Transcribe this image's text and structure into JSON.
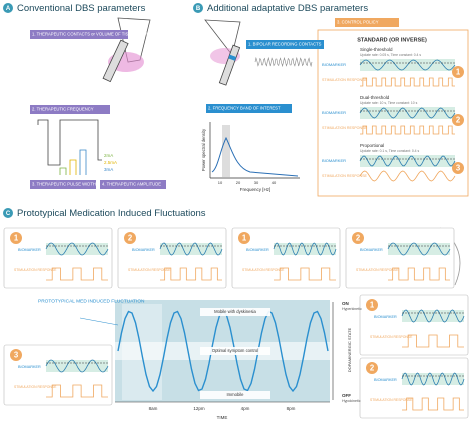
{
  "panel_a": {
    "letter": "A",
    "title": "Conventional DBS parameters",
    "labels": [
      "1. THERAPEUTIC CONTACTS or VOLUME OF TISSUE ACTIVATED",
      "2. THERAPEUTIC FREQUENCY",
      "3. THERAPEUTIC PULSE WIDTH",
      "4. THERAPEUTIC AMPLITUDE"
    ],
    "amplitudes": [
      "2mA",
      "2.5mA",
      "3mA"
    ]
  },
  "panel_b": {
    "letter": "B",
    "title": "Additional adaptative DBS parameters",
    "labels": [
      "1. BIPOLAR RECORDING CONTACTS",
      "2. FREQUENCY BAND OF INTEREST",
      "3. CONTROL POLICY"
    ],
    "psd": {
      "y_label": "Power spectral density",
      "x_label": "Frequency [Hz]",
      "xticks": [
        10,
        20,
        30,
        40
      ]
    },
    "policy": {
      "heading": "STANDARD (OR INVERSE)",
      "modes": [
        {
          "badge": "1",
          "name": "Single-threshold",
          "detail": "Update rate: 0.05 s, Time constant: 0.4 s",
          "biomarker": "BIOMARKER",
          "response": "STIMULATION RESPONSE"
        },
        {
          "badge": "2",
          "name": "Dual-threshold",
          "detail": "Update rate: 10 s, Time constant: 10 s",
          "biomarker": "BIOMARKER",
          "response": "STIMULATION RESPONSE"
        },
        {
          "badge": "3",
          "name": "Proportional",
          "detail": "Update rate: 0.1 s, Time constant: 0.4 s",
          "biomarker": "BIOMARKER",
          "response": "STIMULATION RESPONSE"
        }
      ]
    }
  },
  "panel_c": {
    "letter": "C",
    "title": "Prototypical Medication Induced Fluctuations",
    "fluctuation_label": "PROTOTYPICAL MED INDUCED FLUCTUATION",
    "zones": [
      "Mobile with dyskinesia",
      "Optimal symptom control",
      "Immobile"
    ],
    "state_axis": {
      "title": "DOPAMINERGIC STATE",
      "on": "ON",
      "on_sub": "Hyperkinetic",
      "off": "OFF",
      "off_sub": "Hypokinetic"
    },
    "time_axis": {
      "title": "TIME",
      "ticks": [
        "8am",
        "12pm",
        "4pm",
        "8pm"
      ]
    },
    "boxes": [
      {
        "badge": "1",
        "biomarker": "BIOMARKER",
        "response": "STIMULATION RESPONSE"
      },
      {
        "badge": "2",
        "biomarker": "BIOMARKER",
        "response": "STIMULATION RESPONSE"
      },
      {
        "badge": "1",
        "biomarker": "BIOMARKER",
        "response": "STIMULATION RESPONSE"
      },
      {
        "badge": "2",
        "biomarker": "BIOMARKER",
        "response": "STIMULATION RESPONSE"
      },
      {
        "badge": "1",
        "biomarker": "BIOMARKER",
        "response": "STIMULATION RESPONSE"
      },
      {
        "badge": "2",
        "biomarker": "BIOMARKER",
        "response": "STIMULATION RESPONSE"
      },
      {
        "badge": "3",
        "biomarker": "BIOMARKER",
        "response": "STIMULATION RESPONSE"
      }
    ]
  }
}
